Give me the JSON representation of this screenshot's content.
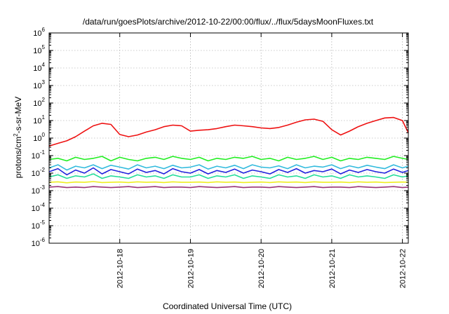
{
  "chart_data": {
    "type": "line",
    "title": "/data/run/goesPlots/archive/2012-10-22/00:00/flux/../flux/5daysMoonFluxes.txt",
    "xlabel": "Coordinated Universal Time (UTC)",
    "ylabel_base": "protons/cm",
    "ylabel_sup": "2",
    "ylabel_rest": "-s-sr-MeV",
    "y_scale": "log",
    "ylim": [
      1e-06,
      1000000
    ],
    "xlim": [
      "2012-10-17 00:00",
      "2012-10-22 02:00"
    ],
    "grid": true,
    "y_ticks": [
      {
        "value": 1e-06,
        "base": "10",
        "exp": "-6"
      },
      {
        "value": 1e-05,
        "base": "10",
        "exp": "-5"
      },
      {
        "value": 0.0001,
        "base": "10",
        "exp": "-4"
      },
      {
        "value": 0.001,
        "base": "10",
        "exp": "-3"
      },
      {
        "value": 0.01,
        "base": "10",
        "exp": "-2"
      },
      {
        "value": 0.1,
        "base": "10",
        "exp": "-1"
      },
      {
        "value": 1,
        "base": "10",
        "exp": "0"
      },
      {
        "value": 10,
        "base": "10",
        "exp": "1"
      },
      {
        "value": 100,
        "base": "10",
        "exp": "2"
      },
      {
        "value": 1000,
        "base": "10",
        "exp": "3"
      },
      {
        "value": 10000,
        "base": "10",
        "exp": "4"
      },
      {
        "value": 100000,
        "base": "10",
        "exp": "5"
      },
      {
        "value": 1000000,
        "base": "10",
        "exp": "6"
      }
    ],
    "x_ticks": [
      {
        "date": "2012-10-18 00:00",
        "label": "2012-10-18"
      },
      {
        "date": "2012-10-19 00:00",
        "label": "2012-10-19"
      },
      {
        "date": "2012-10-20 00:00",
        "label": "2012-10-20"
      },
      {
        "date": "2012-10-21 00:00",
        "label": "2012-10-21"
      },
      {
        "date": "2012-10-22 00:00",
        "label": "2012-10-22"
      }
    ],
    "x": [
      "2012-10-17 00:00",
      "2012-10-17 03:00",
      "2012-10-17 06:00",
      "2012-10-17 09:00",
      "2012-10-17 12:00",
      "2012-10-17 15:00",
      "2012-10-17 18:00",
      "2012-10-17 21:00",
      "2012-10-18 00:00",
      "2012-10-18 03:00",
      "2012-10-18 06:00",
      "2012-10-18 09:00",
      "2012-10-18 12:00",
      "2012-10-18 15:00",
      "2012-10-18 18:00",
      "2012-10-18 21:00",
      "2012-10-19 00:00",
      "2012-10-19 03:00",
      "2012-10-19 06:00",
      "2012-10-19 09:00",
      "2012-10-19 12:00",
      "2012-10-19 15:00",
      "2012-10-19 18:00",
      "2012-10-19 21:00",
      "2012-10-20 00:00",
      "2012-10-20 03:00",
      "2012-10-20 06:00",
      "2012-10-20 09:00",
      "2012-10-20 12:00",
      "2012-10-20 15:00",
      "2012-10-20 18:00",
      "2012-10-20 21:00",
      "2012-10-21 00:00",
      "2012-10-21 03:00",
      "2012-10-21 06:00",
      "2012-10-21 09:00",
      "2012-10-21 12:00",
      "2012-10-21 15:00",
      "2012-10-21 18:00",
      "2012-10-21 21:00",
      "2012-10-22 00:00",
      "2012-10-22 02:00"
    ],
    "series": [
      {
        "color": "#ee1111",
        "values": [
          0.35,
          0.5,
          0.7,
          1.2,
          2.5,
          5,
          7,
          6,
          1.6,
          1.2,
          1.5,
          2.2,
          3,
          4.5,
          5.5,
          5,
          2.5,
          2.8,
          3,
          3.5,
          4.5,
          5.5,
          5,
          4.5,
          3.8,
          3.5,
          4,
          5.5,
          8,
          11,
          12,
          9,
          3,
          1.5,
          2.5,
          4.5,
          7,
          10,
          14,
          15,
          10,
          2
        ]
      },
      {
        "color": "#22ee22",
        "values": [
          0.06,
          0.07,
          0.05,
          0.08,
          0.06,
          0.07,
          0.09,
          0.05,
          0.08,
          0.06,
          0.05,
          0.07,
          0.08,
          0.06,
          0.09,
          0.07,
          0.06,
          0.08,
          0.05,
          0.07,
          0.06,
          0.08,
          0.07,
          0.09,
          0.06,
          0.07,
          0.05,
          0.08,
          0.06,
          0.07,
          0.09,
          0.06,
          0.08,
          0.05,
          0.07,
          0.06,
          0.08,
          0.07,
          0.06,
          0.09,
          0.07,
          0.06
        ]
      },
      {
        "color": "#33bbdd",
        "values": [
          0.02,
          0.03,
          0.015,
          0.025,
          0.02,
          0.03,
          0.018,
          0.028,
          0.022,
          0.017,
          0.03,
          0.02,
          0.025,
          0.018,
          0.028,
          0.02,
          0.022,
          0.03,
          0.017,
          0.025,
          0.02,
          0.028,
          0.018,
          0.03,
          0.022,
          0.02,
          0.026,
          0.018,
          0.03,
          0.02,
          0.025,
          0.022,
          0.03,
          0.018,
          0.026,
          0.02,
          0.028,
          0.022,
          0.018,
          0.03,
          0.02,
          0.025
        ]
      },
      {
        "color": "#2222dd",
        "values": [
          0.012,
          0.018,
          0.008,
          0.015,
          0.01,
          0.02,
          0.009,
          0.016,
          0.012,
          0.009,
          0.017,
          0.011,
          0.014,
          0.009,
          0.018,
          0.012,
          0.01,
          0.016,
          0.009,
          0.014,
          0.011,
          0.017,
          0.01,
          0.015,
          0.012,
          0.009,
          0.016,
          0.011,
          0.018,
          0.01,
          0.014,
          0.012,
          0.017,
          0.009,
          0.015,
          0.011,
          0.016,
          0.012,
          0.01,
          0.017,
          0.011,
          0.014
        ]
      },
      {
        "color": "#22dd99",
        "values": [
          0.006,
          0.008,
          0.005,
          0.007,
          0.006,
          0.009,
          0.005,
          0.007,
          0.006,
          0.005,
          0.008,
          0.006,
          0.007,
          0.005,
          0.008,
          0.006,
          0.006,
          0.008,
          0.005,
          0.007,
          0.006,
          0.008,
          0.005,
          0.007,
          0.006,
          0.005,
          0.008,
          0.006,
          0.007,
          0.005,
          0.008,
          0.006,
          0.007,
          0.005,
          0.008,
          0.006,
          0.007,
          0.006,
          0.005,
          0.008,
          0.006,
          0.007
        ]
      },
      {
        "color": "#eeee22",
        "values": [
          0.003,
          0.0032,
          0.0028,
          0.0031,
          0.003,
          0.0033,
          0.0029,
          0.003,
          0.0031,
          0.0029,
          0.0032,
          0.003,
          0.0031,
          0.0029,
          0.0032,
          0.003,
          0.003,
          0.0031,
          0.0029,
          0.0032,
          0.003,
          0.0031,
          0.0029,
          0.003,
          0.0031,
          0.0029,
          0.0032,
          0.003,
          0.0031,
          0.0029,
          0.0032,
          0.003,
          0.003,
          0.0031,
          0.0029,
          0.0032,
          0.003,
          0.0031,
          0.0029,
          0.003,
          0.0031,
          0.003
        ]
      },
      {
        "color": "#993377",
        "values": [
          0.0016,
          0.0017,
          0.0015,
          0.0016,
          0.0015,
          0.0017,
          0.0016,
          0.0015,
          0.0016,
          0.0017,
          0.0015,
          0.0016,
          0.0017,
          0.0015,
          0.0016,
          0.0016,
          0.0015,
          0.0017,
          0.0016,
          0.0015,
          0.0016,
          0.0017,
          0.0015,
          0.0016,
          0.0016,
          0.0015,
          0.0017,
          0.0016,
          0.0015,
          0.0016,
          0.0017,
          0.0015,
          0.0016,
          0.0016,
          0.0015,
          0.0017,
          0.0016,
          0.0015,
          0.0016,
          0.0017,
          0.0015,
          0.0016
        ]
      }
    ]
  }
}
